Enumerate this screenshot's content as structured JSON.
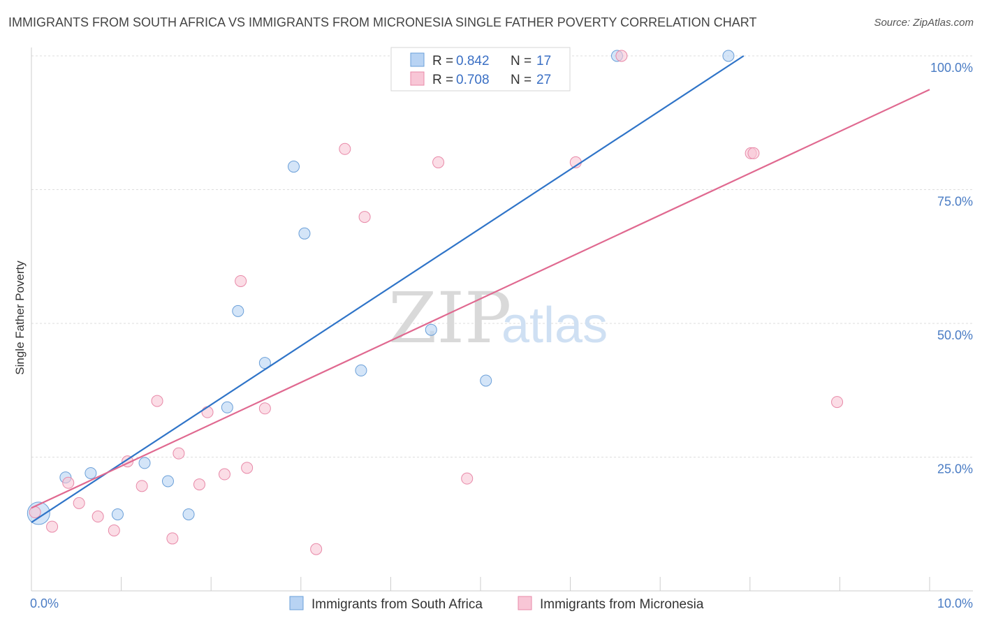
{
  "title": "IMMIGRANTS FROM SOUTH AFRICA VS IMMIGRANTS FROM MICRONESIA SINGLE FATHER POVERTY CORRELATION CHART",
  "source": "Source: ZipAtlas.com",
  "watermark": {
    "zip": "ZIP",
    "atlas": "atlas"
  },
  "legend": {
    "r_label": "R =",
    "n_label": "N =",
    "rows": [
      {
        "r": "0.842",
        "n": "17"
      },
      {
        "r": "0.708",
        "n": "27"
      }
    ]
  },
  "colors": {
    "blue_fill": "#b8d3f3",
    "blue_stroke": "#6a9fd8",
    "blue_line": "#2f74c8",
    "pink_fill": "#f8c6d6",
    "pink_stroke": "#e889a8",
    "pink_line": "#e06990"
  },
  "chart_data": {
    "type": "scatter",
    "title": "IMMIGRANTS FROM SOUTH AFRICA VS IMMIGRANTS FROM MICRONESIA SINGLE FATHER POVERTY CORRELATION CHART",
    "xlabel": "",
    "ylabel": "Single Father Poverty",
    "xlim": [
      0,
      10
    ],
    "ylim": [
      0,
      102
    ],
    "x_tick_labels": [
      "0.0%",
      "10.0%"
    ],
    "y_ticks": [
      25,
      50,
      75,
      100
    ],
    "y_tick_labels": [
      "25.0%",
      "50.0%",
      "75.0%",
      "100.0%"
    ],
    "grid": true,
    "legend_position": "top-center",
    "series": [
      {
        "name": "Immigrants from South Africa",
        "points": [
          {
            "x": 0.08,
            "y": 14.5,
            "big": true
          },
          {
            "x": 0.38,
            "y": 21.2
          },
          {
            "x": 0.66,
            "y": 22.0
          },
          {
            "x": 0.96,
            "y": 14.3
          },
          {
            "x": 1.26,
            "y": 23.9
          },
          {
            "x": 1.52,
            "y": 20.5
          },
          {
            "x": 1.75,
            "y": 14.3
          },
          {
            "x": 2.18,
            "y": 34.3
          },
          {
            "x": 2.3,
            "y": 52.3
          },
          {
            "x": 2.6,
            "y": 42.6
          },
          {
            "x": 2.92,
            "y": 79.3
          },
          {
            "x": 3.04,
            "y": 66.8
          },
          {
            "x": 3.67,
            "y": 41.2
          },
          {
            "x": 4.45,
            "y": 48.8
          },
          {
            "x": 5.06,
            "y": 39.3
          },
          {
            "x": 6.52,
            "y": 100.0
          },
          {
            "x": 7.76,
            "y": 100.0
          }
        ],
        "trend": {
          "x": [
            0.0,
            7.93
          ],
          "y": [
            12.8,
            100.0
          ]
        }
      },
      {
        "name": "Immigrants from Micronesia",
        "points": [
          {
            "x": 0.04,
            "y": 14.7
          },
          {
            "x": 0.23,
            "y": 12.0
          },
          {
            "x": 0.41,
            "y": 20.2
          },
          {
            "x": 0.53,
            "y": 16.4
          },
          {
            "x": 0.74,
            "y": 13.9
          },
          {
            "x": 0.92,
            "y": 11.3
          },
          {
            "x": 1.07,
            "y": 24.2
          },
          {
            "x": 1.23,
            "y": 19.6
          },
          {
            "x": 1.4,
            "y": 35.5
          },
          {
            "x": 1.57,
            "y": 9.8
          },
          {
            "x": 1.64,
            "y": 25.7
          },
          {
            "x": 1.87,
            "y": 19.9
          },
          {
            "x": 1.96,
            "y": 33.4
          },
          {
            "x": 2.15,
            "y": 21.8
          },
          {
            "x": 2.33,
            "y": 57.9
          },
          {
            "x": 2.4,
            "y": 23.0
          },
          {
            "x": 2.6,
            "y": 34.1
          },
          {
            "x": 3.17,
            "y": 7.8
          },
          {
            "x": 3.49,
            "y": 82.6
          },
          {
            "x": 3.71,
            "y": 69.9
          },
          {
            "x": 4.53,
            "y": 80.1
          },
          {
            "x": 4.85,
            "y": 21.0
          },
          {
            "x": 6.06,
            "y": 80.1
          },
          {
            "x": 6.57,
            "y": 100.0
          },
          {
            "x": 8.01,
            "y": 81.8
          },
          {
            "x": 8.04,
            "y": 81.8
          },
          {
            "x": 8.97,
            "y": 35.3
          }
        ],
        "trend": {
          "x": [
            0.0,
            10.0
          ],
          "y": [
            15.5,
            93.7
          ]
        }
      }
    ]
  }
}
